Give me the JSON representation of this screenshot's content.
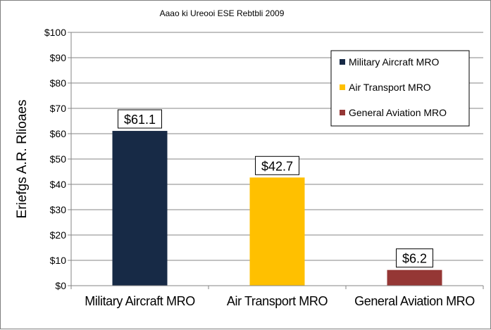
{
  "chart_data": {
    "type": "bar",
    "title": "Aaao ki Ureooi ESE Rebtbli 2009",
    "ylabel": "Eriefgs A.R. Rlioaes",
    "xlabel": "",
    "categories": [
      "Military Aircraft MRO",
      "Air Transport MRO",
      "General Aviation MRO"
    ],
    "values": [
      61.1,
      42.7,
      6.2
    ],
    "data_labels": [
      "$61.1",
      "$42.7",
      "$6.2"
    ],
    "colors": [
      "#172a46",
      "#ffc000",
      "#953735"
    ],
    "ylim": [
      0,
      100
    ],
    "yticks": [
      0,
      10,
      20,
      30,
      40,
      50,
      60,
      70,
      80,
      90,
      100
    ],
    "ytick_labels": [
      "$0",
      "$10",
      "$20",
      "$30",
      "$40",
      "$50",
      "$60",
      "$70",
      "$80",
      "$90",
      "$100"
    ],
    "grid": true,
    "legend": {
      "placement": "top-right",
      "entries": [
        "Military Aircraft MRO",
        "Air Transport MRO",
        "General Aviation MRO"
      ]
    }
  }
}
